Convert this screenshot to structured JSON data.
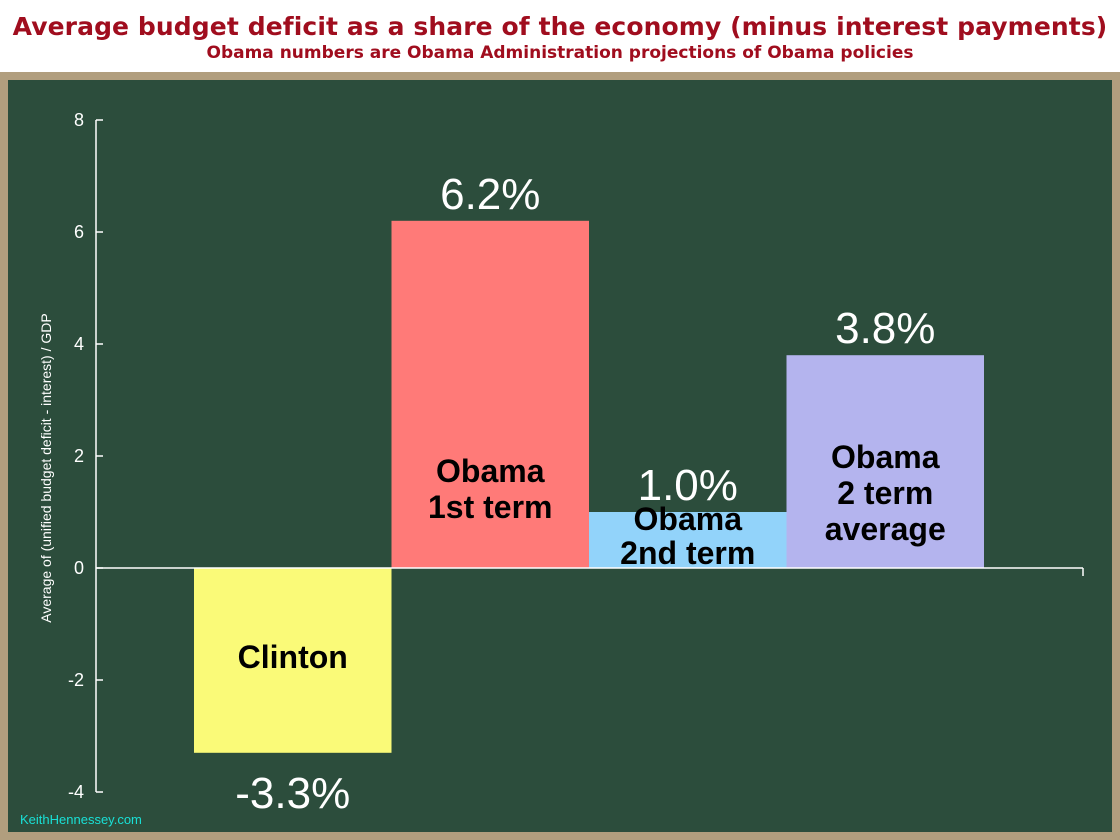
{
  "header": {
    "title": "Average budget deficit as a share of the economy (minus interest payments)",
    "subtitle": "Obama numbers are Obama Administration projections of Obama policies"
  },
  "footer": {
    "credit": "KeithHennessey.com"
  },
  "colors": {
    "title": "#a00d1e",
    "board": "#2c4d3c",
    "frame": "#b19e7e",
    "credit": "#19e0d6"
  },
  "chart_data": {
    "type": "bar",
    "title": "Average budget deficit as a share of the economy (minus interest payments)",
    "subtitle": "Obama numbers are Obama Administration projections of Obama policies",
    "ylabel": "Average of (unified budget deficit - interest) / GDP",
    "xlabel": "",
    "ylim": [
      -4,
      8
    ],
    "yticks": [
      "-4",
      "-2",
      "0",
      "2",
      "4",
      "6",
      "8"
    ],
    "grid": false,
    "categories": [
      {
        "lines": [
          "Clinton"
        ],
        "value": -3.3,
        "label": "-3.3%",
        "color": "#fafa78"
      },
      {
        "lines": [
          "Obama",
          "1st term"
        ],
        "value": 6.2,
        "label": "6.2%",
        "color": "#ff7a78"
      },
      {
        "lines": [
          "Obama",
          "2nd term"
        ],
        "value": 1.0,
        "label": "1.0%",
        "color": "#92d3fa"
      },
      {
        "lines": [
          "Obama",
          "2 term",
          "average"
        ],
        "value": 3.8,
        "label": "3.8%",
        "color": "#b4b4ee"
      }
    ]
  }
}
